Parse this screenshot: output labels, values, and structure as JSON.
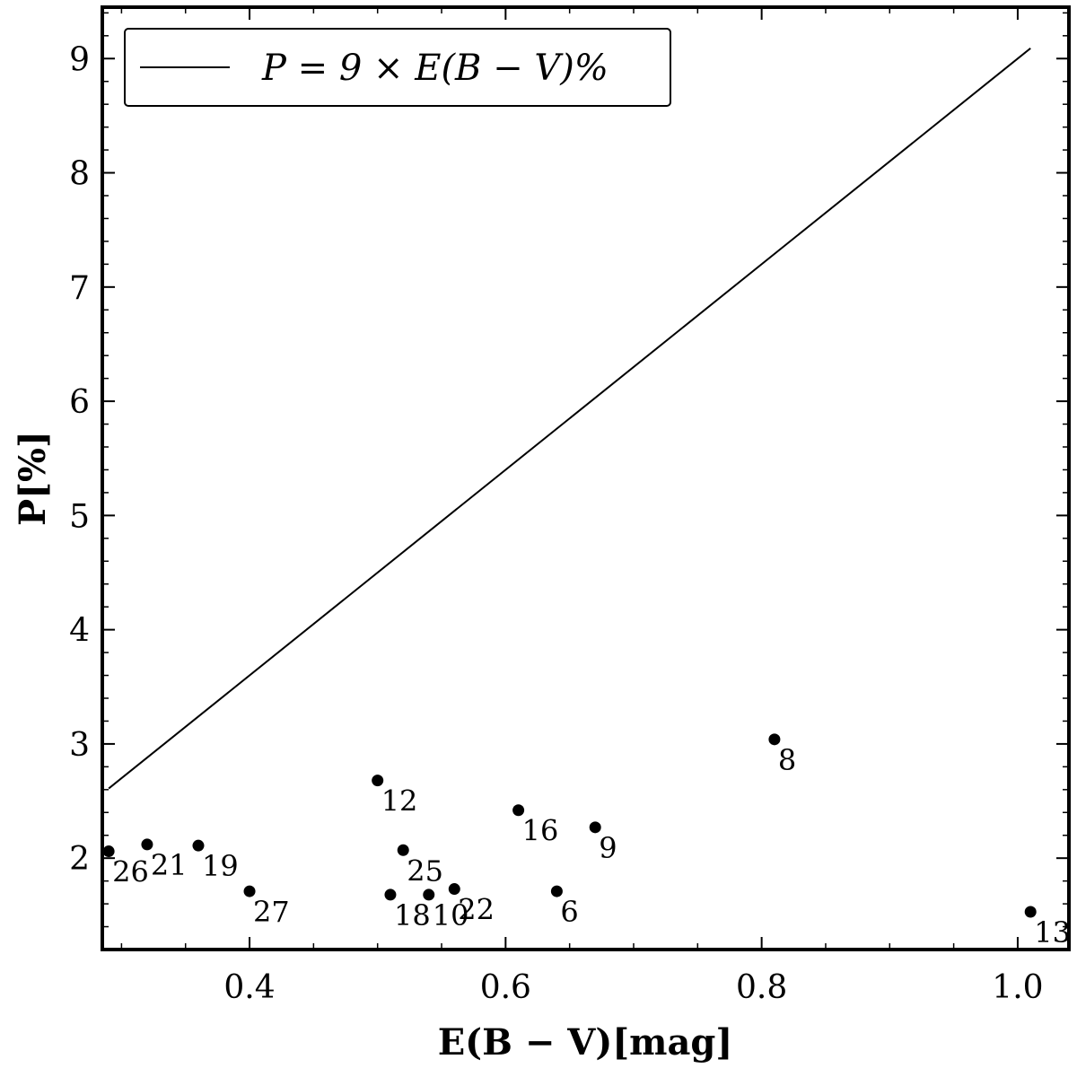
{
  "chart_data": {
    "type": "scatter",
    "xlabel": "E(B − V)[mag]",
    "ylabel": "P[%]",
    "xlim": [
      0.285,
      1.04
    ],
    "ylim": [
      1.2,
      9.45
    ],
    "x_ticks": [
      0.4,
      0.6,
      0.8,
      1.0
    ],
    "x_tick_labels": [
      "0.4",
      "0.6",
      "0.8",
      "1.0"
    ],
    "y_ticks": [
      2,
      3,
      4,
      5,
      6,
      7,
      8,
      9
    ],
    "y_tick_labels": [
      "2",
      "3",
      "4",
      "5",
      "6",
      "7",
      "8",
      "9"
    ],
    "legend": {
      "placement": "top-left",
      "label": "P = 9 × E(B − V)%"
    },
    "line": {
      "name": "P = 9 × E(B − V)%",
      "slope": 9,
      "x": [
        0.29,
        1.01
      ]
    },
    "points": [
      {
        "label": "26",
        "x": 0.29,
        "y": 2.06
      },
      {
        "label": "21",
        "x": 0.32,
        "y": 2.12
      },
      {
        "label": "19",
        "x": 0.36,
        "y": 2.11
      },
      {
        "label": "27",
        "x": 0.4,
        "y": 1.71
      },
      {
        "label": "12",
        "x": 0.5,
        "y": 2.68
      },
      {
        "label": "25",
        "x": 0.52,
        "y": 2.07
      },
      {
        "label": "18",
        "x": 0.51,
        "y": 1.68
      },
      {
        "label": "10",
        "x": 0.54,
        "y": 1.68
      },
      {
        "label": "22",
        "x": 0.56,
        "y": 1.73
      },
      {
        "label": "16",
        "x": 0.61,
        "y": 2.42
      },
      {
        "label": "6",
        "x": 0.64,
        "y": 1.71
      },
      {
        "label": "9",
        "x": 0.67,
        "y": 2.27
      },
      {
        "label": "8",
        "x": 0.81,
        "y": 3.04
      },
      {
        "label": "13",
        "x": 1.01,
        "y": 1.53
      }
    ]
  }
}
